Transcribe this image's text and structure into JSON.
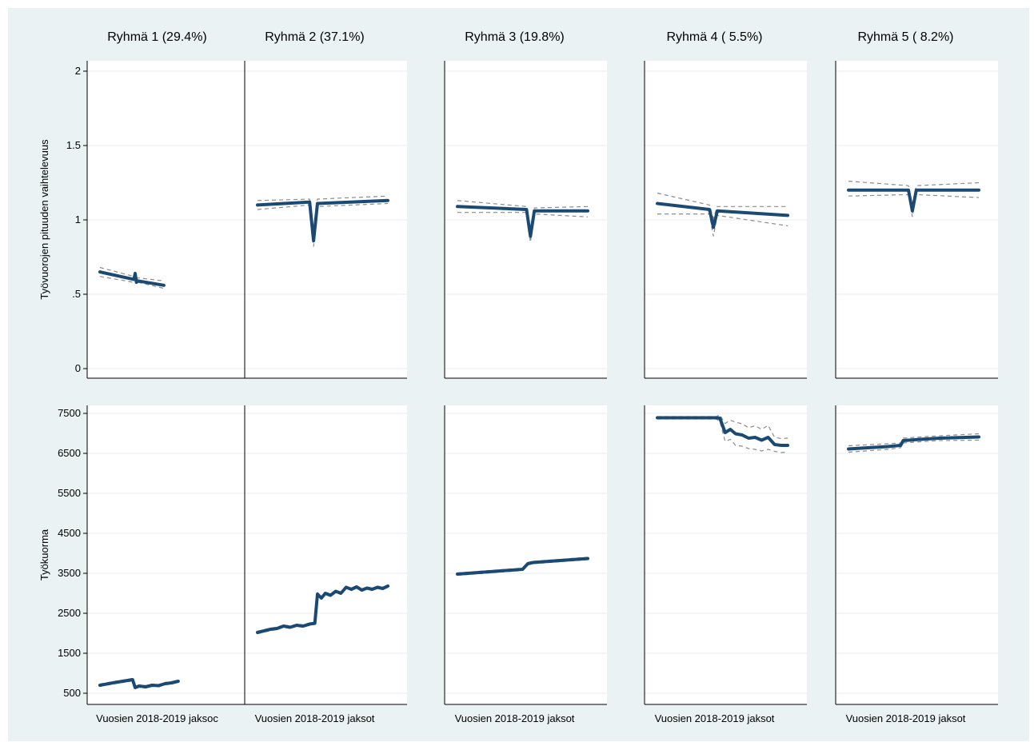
{
  "figure": {
    "background": "#eaf2f3",
    "line_color": "#1a4a73",
    "ci_color": "#8c8c8c"
  },
  "chart_data": [
    {
      "type": "line",
      "row": "top",
      "ylabel": "Työvuorojen pituuden vaihtelevuus",
      "ylim": [
        0,
        2
      ],
      "yticks": [
        0,
        0.5,
        1,
        1.5,
        2
      ],
      "ytick_labels": [
        "0",
        ".5",
        "1",
        "1.5",
        "2"
      ],
      "xlim": [
        0,
        100
      ],
      "grid": true,
      "panels": [
        {
          "title": "Ryhmä 1 (29.4%)",
          "xlabel": "Vuosien 2018-2019 jaksoc",
          "x": [
            0,
            26,
            27,
            28,
            29,
            49
          ],
          "y": [
            0.65,
            0.6,
            0.64,
            0.58,
            0.59,
            0.56
          ],
          "lower": [
            0.62,
            0.58,
            0.62,
            0.57,
            0.58,
            0.54
          ],
          "upper": [
            0.68,
            0.62,
            0.66,
            0.6,
            0.61,
            0.59
          ]
        },
        {
          "title": "Ryhmä 2 (37.1%)",
          "xlabel": "Vuosien 2018-2019 jaksot",
          "x": [
            0,
            40,
            43,
            46,
            100
          ],
          "y": [
            1.1,
            1.12,
            0.86,
            1.11,
            1.13
          ],
          "lower": [
            1.07,
            1.1,
            0.82,
            1.09,
            1.11
          ],
          "upper": [
            1.13,
            1.14,
            0.9,
            1.14,
            1.16
          ]
        },
        {
          "title": "Ryhmä 3 (19.8%)",
          "xlabel": "Vuosien 2018-2019 jaksot",
          "x": [
            0,
            53,
            56,
            59,
            100
          ],
          "y": [
            1.09,
            1.07,
            0.89,
            1.06,
            1.06
          ],
          "lower": [
            1.05,
            1.05,
            0.85,
            1.04,
            1.02
          ],
          "upper": [
            1.13,
            1.09,
            0.93,
            1.08,
            1.09
          ]
        },
        {
          "title": "Ryhmä 4 ( 5.5%)",
          "xlabel": "Vuosien 2018-2019 jaksot",
          "x": [
            0,
            40,
            43,
            46,
            100
          ],
          "y": [
            1.11,
            1.07,
            0.95,
            1.06,
            1.03
          ],
          "lower": [
            1.04,
            1.04,
            0.89,
            1.03,
            0.96
          ],
          "upper": [
            1.18,
            1.1,
            1.01,
            1.09,
            1.09
          ]
        },
        {
          "title": "Ryhmä 5 ( 8.2%)",
          "xlabel": "Vuosien 2018-2019 jaksot",
          "x": [
            0,
            46,
            49,
            52,
            100
          ],
          "y": [
            1.2,
            1.2,
            1.06,
            1.2,
            1.2
          ],
          "lower": [
            1.16,
            1.17,
            1.02,
            1.17,
            1.15
          ],
          "upper": [
            1.26,
            1.23,
            1.1,
            1.23,
            1.25
          ]
        }
      ]
    },
    {
      "type": "line",
      "row": "bottom",
      "ylabel": "Työkuorma",
      "ylim": [
        300,
        7600
      ],
      "yticks": [
        500,
        1500,
        2500,
        3500,
        4500,
        5500,
        6500,
        7500
      ],
      "ytick_labels": [
        "500",
        "1500",
        "2500",
        "3500",
        "4500",
        "5500",
        "6500",
        "7500"
      ],
      "xlim": [
        0,
        100
      ],
      "grid": true,
      "panels": [
        {
          "title": "",
          "xlabel": "Vuosien 2018-2019 jaksoc",
          "x": [
            0,
            10,
            25,
            27,
            30,
            35,
            40,
            45,
            50,
            55,
            60
          ],
          "y": [
            700,
            760,
            840,
            640,
            680,
            660,
            700,
            690,
            740,
            760,
            800
          ],
          "lower": [
            670,
            730,
            810,
            610,
            650,
            630,
            670,
            660,
            710,
            730,
            770
          ],
          "upper": [
            730,
            790,
            870,
            670,
            710,
            690,
            730,
            720,
            770,
            790,
            830
          ]
        },
        {
          "title": "",
          "xlabel": "Vuosien 2018-2019 jaksot",
          "x": [
            0,
            10,
            15,
            20,
            25,
            30,
            35,
            40,
            44,
            46,
            49,
            52,
            56,
            60,
            64,
            68,
            72,
            76,
            80,
            84,
            88,
            92,
            96,
            100
          ],
          "y": [
            2020,
            2100,
            2120,
            2180,
            2150,
            2200,
            2180,
            2230,
            2250,
            2980,
            2880,
            3000,
            2950,
            3050,
            3000,
            3150,
            3100,
            3160,
            3080,
            3130,
            3100,
            3150,
            3120,
            3180
          ],
          "lower": [
            1990,
            2070,
            2090,
            2150,
            2120,
            2170,
            2150,
            2200,
            2220,
            2950,
            2850,
            2970,
            2920,
            3020,
            2970,
            3120,
            3070,
            3130,
            3050,
            3100,
            3070,
            3120,
            3090,
            3150
          ],
          "upper": [
            2050,
            2130,
            2150,
            2210,
            2180,
            2230,
            2210,
            2260,
            2280,
            3010,
            2910,
            3030,
            2980,
            3080,
            3030,
            3180,
            3130,
            3190,
            3110,
            3160,
            3130,
            3180,
            3150,
            3210
          ]
        },
        {
          "title": "",
          "xlabel": "Vuosien 2018-2019 jaksot",
          "x": [
            0,
            50,
            54,
            58,
            100
          ],
          "y": [
            3480,
            3600,
            3740,
            3770,
            3870
          ],
          "lower": [
            3450,
            3570,
            3710,
            3740,
            3840
          ],
          "upper": [
            3510,
            3630,
            3770,
            3800,
            3900
          ]
        },
        {
          "title": "",
          "xlabel": "Vuosien 2018-2019 jaksot",
          "x": [
            0,
            30,
            45,
            48,
            52,
            56,
            60,
            65,
            70,
            75,
            80,
            85,
            90,
            95,
            100
          ],
          "y": [
            7390,
            7390,
            7390,
            7380,
            7020,
            7100,
            6990,
            6960,
            6880,
            6900,
            6830,
            6900,
            6720,
            6700,
            6700
          ],
          "lower": [
            7360,
            7360,
            7360,
            7300,
            6800,
            6850,
            6700,
            6680,
            6620,
            6600,
            6560,
            6600,
            6550,
            6520,
            6530
          ],
          "upper": [
            7420,
            7420,
            7420,
            7460,
            7250,
            7330,
            7280,
            7240,
            7140,
            7190,
            7100,
            7200,
            6900,
            6870,
            6880
          ]
        },
        {
          "title": "",
          "xlabel": "Vuosien 2018-2019 jaksot",
          "x": [
            0,
            30,
            40,
            42,
            55,
            70,
            100
          ],
          "y": [
            6610,
            6670,
            6700,
            6820,
            6850,
            6880,
            6910
          ],
          "lower": [
            6530,
            6600,
            6640,
            6760,
            6790,
            6820,
            6830
          ],
          "upper": [
            6690,
            6740,
            6760,
            6880,
            6910,
            6940,
            6990
          ]
        }
      ]
    }
  ]
}
